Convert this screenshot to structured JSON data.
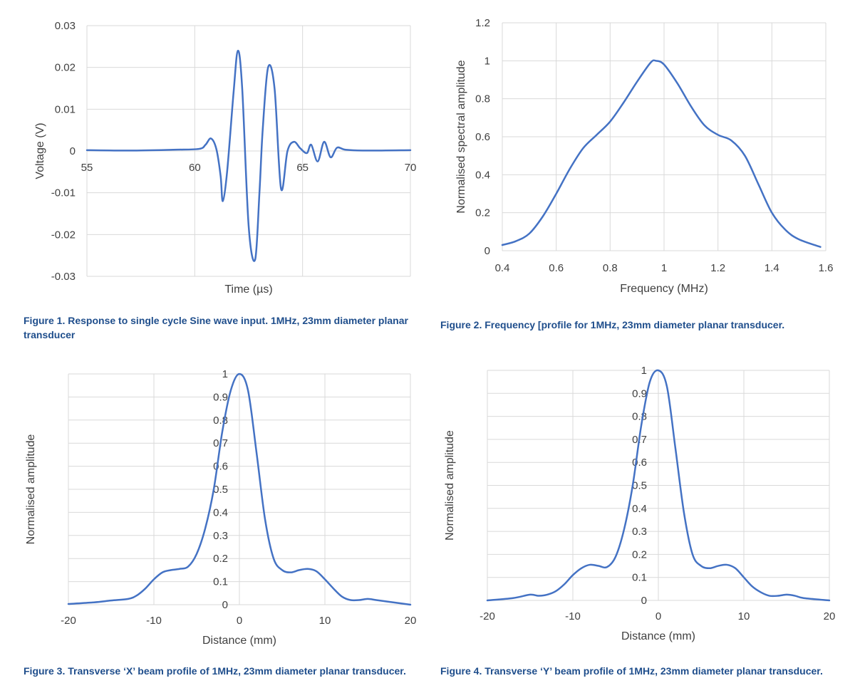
{
  "colors": {
    "line": "#4472c4",
    "grid": "#d9d9d9",
    "text": "#404040",
    "caption": "#1f4e8c"
  },
  "captions": {
    "fig1": "Figure 1. Response to single cycle Sine wave input. 1MHz, 23mm diameter planar transducer",
    "fig2": "Figure 2. Frequency [profile for 1MHz, 23mm diameter planar transducer.",
    "fig3": "Figure 3. Transverse ‘X’ beam profile of 1MHz, 23mm diameter planar transducer.",
    "fig4": "Figure 4. Transverse ‘Y’ beam profile of 1MHz, 23mm diameter planar transducer."
  },
  "chart_data": [
    {
      "id": "fig1",
      "type": "line",
      "xlabel": "Time (µs)",
      "ylabel": "Voltage (V)",
      "xlim": [
        55,
        70
      ],
      "ylim": [
        -0.03,
        0.03
      ],
      "xticks": [
        55,
        60,
        65,
        70
      ],
      "xtick_labels": [
        "55",
        "60",
        "65",
        "70"
      ],
      "yticks": [
        0.03,
        0.02,
        0.01,
        0,
        -0.01,
        -0.02,
        -0.03
      ],
      "ytick_labels": [
        "0.03",
        "0.02",
        "0.01",
        "0",
        "-0.01",
        "-0.02",
        "-0.03"
      ],
      "grid": true,
      "series": [
        {
          "x": [
            55,
            57,
            59,
            60.2,
            60.5,
            60.75,
            61.0,
            61.2,
            61.3,
            61.5,
            61.8,
            62.0,
            62.2,
            62.5,
            62.8,
            63.0,
            63.15,
            63.4,
            63.7,
            64.0,
            64.3,
            64.6,
            64.9,
            65.2,
            65.4,
            65.7,
            66.0,
            66.3,
            66.6,
            67.0,
            68.0,
            70
          ],
          "y": [
            0.0002,
            0.0001,
            0.0003,
            0.0005,
            0.0015,
            0.003,
            0.0005,
            -0.006,
            -0.012,
            -0.005,
            0.014,
            0.024,
            0.015,
            -0.018,
            -0.026,
            -0.01,
            0.005,
            0.02,
            0.015,
            -0.009,
            0.0,
            0.0022,
            0.0006,
            -0.0005,
            0.0015,
            -0.0025,
            0.0022,
            -0.0015,
            0.0008,
            0.0003,
            0.0001,
            0.0002
          ]
        }
      ]
    },
    {
      "id": "fig2",
      "type": "line",
      "xlabel": "Frequency (MHz)",
      "ylabel": "Normalised spectral amplitude",
      "xlim": [
        0.4,
        1.6
      ],
      "ylim": [
        0,
        1.2
      ],
      "xticks": [
        0.4,
        0.6,
        0.8,
        1,
        1.2,
        1.4,
        1.6
      ],
      "xtick_labels": [
        "0.4",
        "0.6",
        "0.8",
        "1",
        "1.2",
        "1.4",
        "1.6"
      ],
      "yticks": [
        1.2,
        1,
        0.8,
        0.6,
        0.4,
        0.2,
        0
      ],
      "ytick_labels": [
        "1.2",
        "1",
        "0.8",
        "0.6",
        "0.4",
        "0.2",
        "0"
      ],
      "grid": true,
      "series": [
        {
          "x": [
            0.4,
            0.45,
            0.5,
            0.55,
            0.6,
            0.65,
            0.7,
            0.75,
            0.8,
            0.85,
            0.9,
            0.95,
            0.97,
            1.0,
            1.05,
            1.1,
            1.15,
            1.2,
            1.25,
            1.3,
            1.35,
            1.4,
            1.45,
            1.5,
            1.58
          ],
          "y": [
            0.03,
            0.05,
            0.09,
            0.18,
            0.3,
            0.43,
            0.54,
            0.61,
            0.68,
            0.78,
            0.89,
            0.99,
            1.0,
            0.98,
            0.88,
            0.76,
            0.66,
            0.61,
            0.58,
            0.5,
            0.35,
            0.2,
            0.11,
            0.06,
            0.02
          ]
        }
      ]
    },
    {
      "id": "fig3",
      "type": "line",
      "xlabel": "Distance (mm)",
      "ylabel": "Normalised amplitude",
      "xlim": [
        -20,
        20
      ],
      "ylim": [
        0,
        1
      ],
      "xticks": [
        -20,
        -10,
        0,
        10,
        20
      ],
      "xtick_labels": [
        "-20",
        "-10",
        "0",
        "10",
        "20"
      ],
      "yticks": [
        1,
        0.9,
        0.8,
        0.7,
        0.6,
        0.5,
        0.4,
        0.3,
        0.2,
        0.1,
        0
      ],
      "ytick_labels": [
        "1",
        "0.9",
        "0.8",
        "0.7",
        "0.6",
        "0.5",
        "0.4",
        "0.3",
        "0.2",
        "0.1",
        "0"
      ],
      "grid": true,
      "series": [
        {
          "x": [
            -20,
            -17,
            -15,
            -13,
            -12,
            -11,
            -10,
            -9,
            -8,
            -7,
            -6,
            -5,
            -4,
            -3,
            -2,
            -1,
            0,
            1,
            2,
            3,
            4,
            5,
            6,
            7,
            8,
            9,
            10,
            11,
            12,
            13,
            14,
            15,
            16,
            17,
            18,
            20
          ],
          "y": [
            0.003,
            0.01,
            0.018,
            0.025,
            0.04,
            0.07,
            0.11,
            0.14,
            0.15,
            0.155,
            0.165,
            0.22,
            0.33,
            0.5,
            0.75,
            0.93,
            1.0,
            0.93,
            0.66,
            0.37,
            0.2,
            0.15,
            0.14,
            0.15,
            0.155,
            0.145,
            0.11,
            0.07,
            0.035,
            0.02,
            0.02,
            0.025,
            0.02,
            0.015,
            0.01,
            0.0
          ]
        }
      ]
    },
    {
      "id": "fig4",
      "type": "line",
      "xlabel": "Distance (mm)",
      "ylabel": "Normalised amplitude",
      "xlim": [
        -20,
        20
      ],
      "ylim": [
        0,
        1
      ],
      "xticks": [
        -20,
        -10,
        0,
        10,
        20
      ],
      "xtick_labels": [
        "-20",
        "-10",
        "0",
        "10",
        "20"
      ],
      "yticks": [
        1,
        0.9,
        0.8,
        0.7,
        0.6,
        0.5,
        0.4,
        0.3,
        0.2,
        0.1,
        0
      ],
      "ytick_labels": [
        "1",
        "0.9",
        "0.8",
        "0.7",
        "0.6",
        "0.5",
        "0.4",
        "0.3",
        "0.2",
        "0.1",
        "0"
      ],
      "grid": true,
      "series": [
        {
          "x": [
            -20,
            -17,
            -15,
            -14,
            -13,
            -12,
            -11,
            -10,
            -9,
            -8,
            -7,
            -6,
            -5,
            -4,
            -3,
            -2,
            -1,
            0,
            1,
            2,
            3,
            4,
            5,
            6,
            7,
            8,
            9,
            10,
            11,
            12,
            13,
            14,
            15,
            16,
            17,
            20
          ],
          "y": [
            0.0,
            0.01,
            0.025,
            0.02,
            0.025,
            0.04,
            0.07,
            0.11,
            0.14,
            0.155,
            0.15,
            0.145,
            0.19,
            0.31,
            0.5,
            0.76,
            0.95,
            1.0,
            0.93,
            0.66,
            0.38,
            0.2,
            0.15,
            0.14,
            0.15,
            0.155,
            0.14,
            0.1,
            0.06,
            0.035,
            0.02,
            0.02,
            0.025,
            0.02,
            0.01,
            0.0
          ]
        }
      ]
    }
  ]
}
